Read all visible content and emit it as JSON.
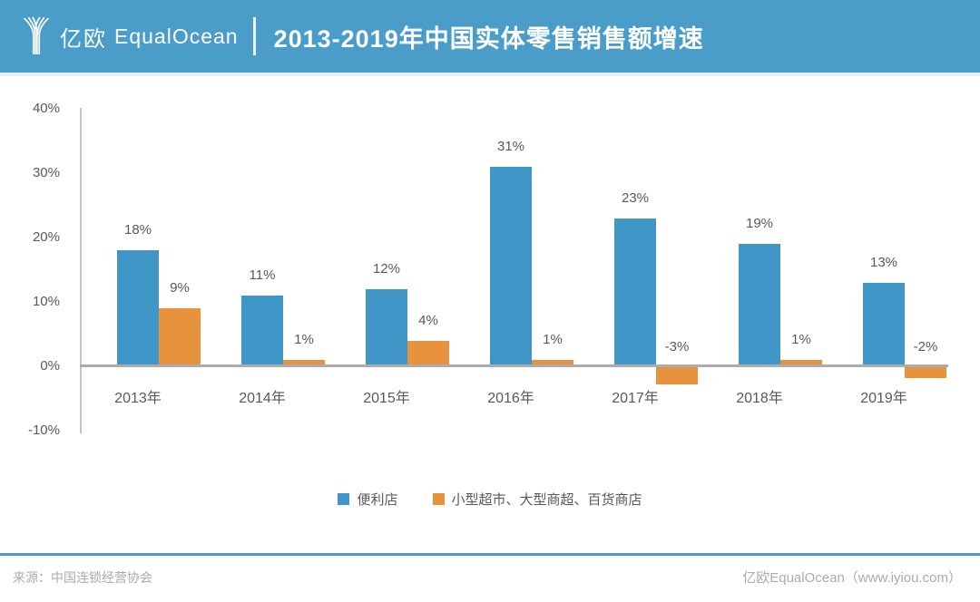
{
  "header": {
    "logo_cn": "亿欧",
    "logo_en": "EqualOcean",
    "title": "2013-2019年中国实体零售销售额增速"
  },
  "chart_data": {
    "type": "bar",
    "title": "2013-2019年中国实体零售销售额增速",
    "categories": [
      "2013年",
      "2014年",
      "2015年",
      "2016年",
      "2017年",
      "2018年",
      "2019年"
    ],
    "series": [
      {
        "key": "convenience-store",
        "name": "便利店",
        "color": "#4196C8",
        "values": [
          18,
          11,
          12,
          31,
          23,
          19,
          13
        ]
      },
      {
        "key": "supermarket-department-store",
        "name": "小型超市、大型商超、百货商店",
        "color": "#E8923E",
        "values": [
          9,
          1,
          4,
          1,
          -3,
          1,
          -2
        ]
      }
    ],
    "y_ticks": [
      {
        "value": 40,
        "label": "40%"
      },
      {
        "value": 30,
        "label": "30%"
      },
      {
        "value": 20,
        "label": "20%"
      },
      {
        "value": 10,
        "label": "10%"
      },
      {
        "value": 0,
        "label": "0%"
      },
      {
        "value": -10,
        "label": "-10%"
      }
    ],
    "ylim": [
      -10,
      40
    ],
    "unit": "%",
    "value_label_suffix": "%",
    "grid": false,
    "legend_position": "bottom"
  },
  "footer": {
    "source": "来源：中国连锁经营协会",
    "brand": "亿欧EqualOcean（www.iyiou.com）"
  }
}
